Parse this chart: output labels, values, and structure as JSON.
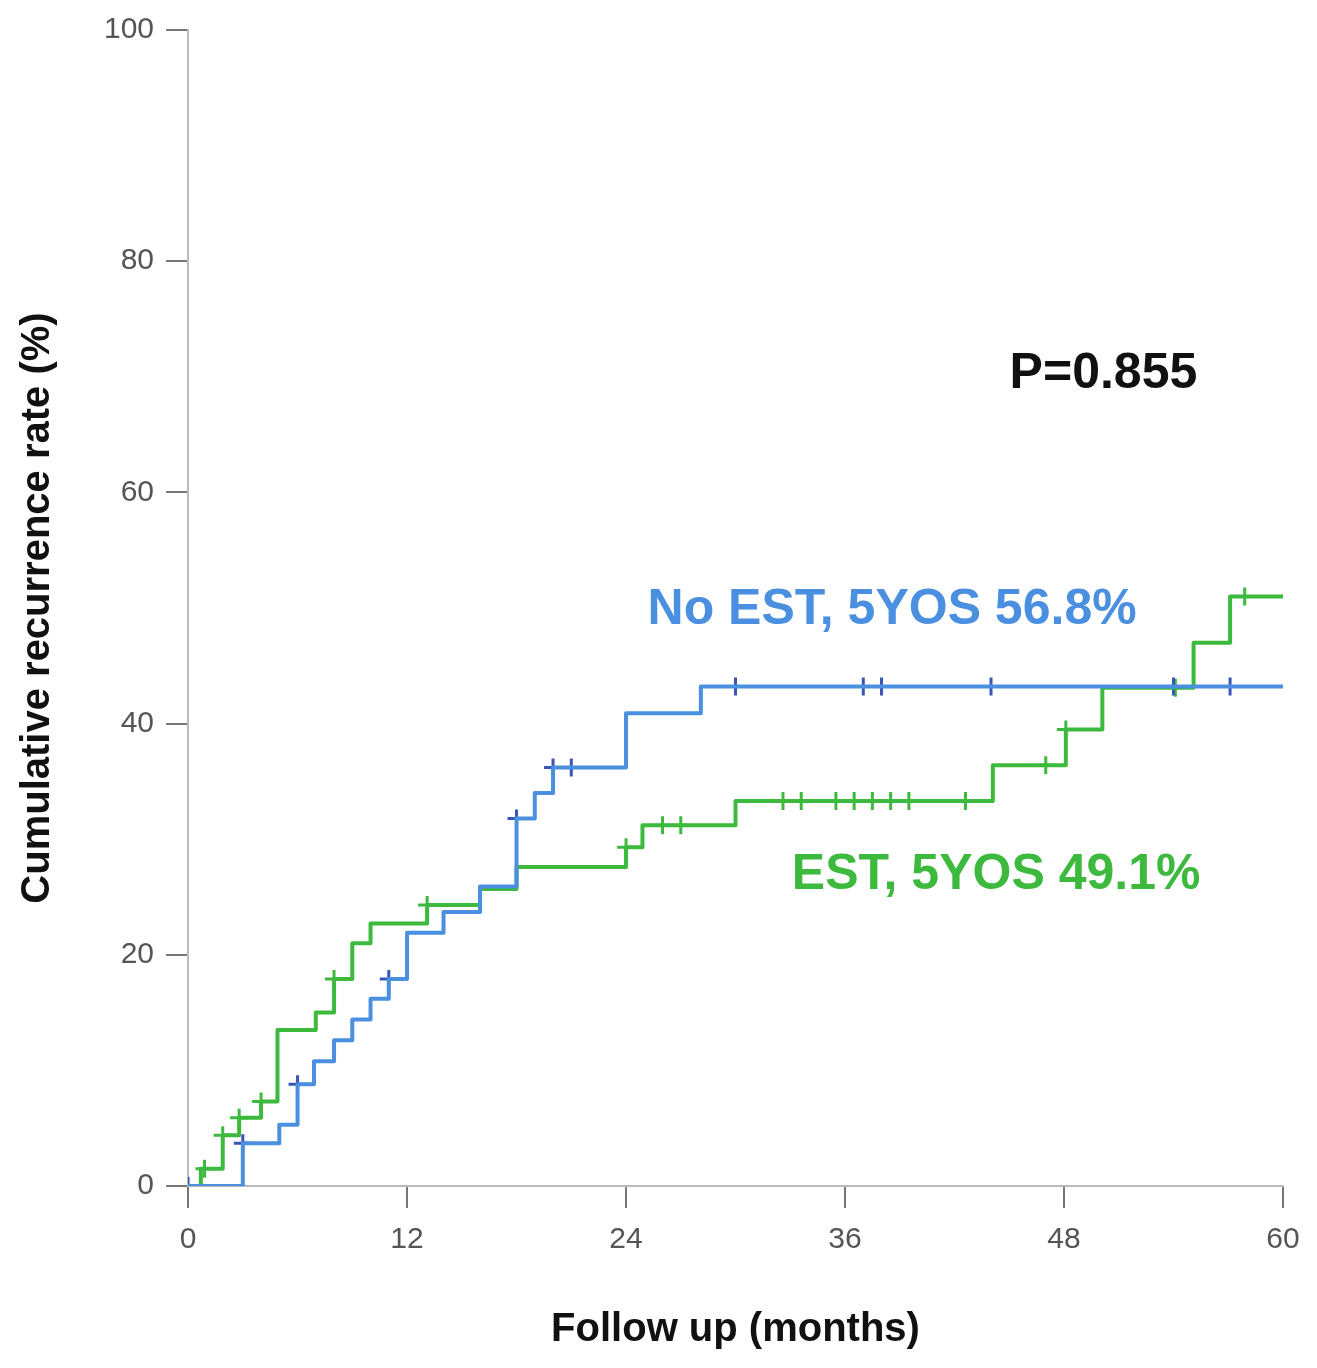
{
  "chart_data": {
    "type": "step",
    "xlabel": "Follow up (months)",
    "ylabel": "Cumulative recurrence rate (%)",
    "xlim": [
      0,
      60
    ],
    "xticks": [
      0,
      12,
      24,
      36,
      48,
      60
    ],
    "ylim": [
      0,
      100
    ],
    "yticks": [
      0,
      20,
      40,
      60,
      80,
      100
    ],
    "grid": false,
    "legend": false,
    "marker": "none",
    "line_style": "solid",
    "annotations": [
      "P=0.855"
    ],
    "series": [
      {
        "name": "No EST, 5YOS 56.8%",
        "color": "#4a8fe0",
        "x": [
          0,
          3,
          5,
          6,
          6.9,
          8,
          9,
          10,
          11,
          12,
          14,
          16,
          18,
          19,
          20,
          24,
          28.1,
          60
        ],
        "values": [
          0,
          3.7,
          5.3,
          8.8,
          10.8,
          12.6,
          14.4,
          16.2,
          17.9,
          21.9,
          23.7,
          25.9,
          31.8,
          34,
          36.2,
          40.9,
          43.2,
          43.2
        ]
      },
      {
        "name": "EST, 5YOS 49.1%",
        "color": "#3dba3d",
        "x": [
          0,
          0.7,
          1.9,
          2.8,
          4,
          4.9,
          7,
          8,
          9,
          10,
          13.1,
          16,
          18,
          24,
          24.9,
          30,
          44.1,
          48.1,
          50.1,
          55.1,
          57.1,
          60
        ],
        "values": [
          0,
          1.5,
          4.4,
          5.9,
          7.3,
          13.5,
          15,
          17.9,
          21,
          22.7,
          24.3,
          25.7,
          27.6,
          29.3,
          31.2,
          33.3,
          36.4,
          39.5,
          43.1,
          47,
          51,
          51
        ]
      },
      {
        "type": "scatter",
        "color": "#3a55b8",
        "marker": "cross",
        "x": [
          0,
          3,
          6,
          11,
          18,
          20,
          21,
          30,
          37,
          38,
          44,
          54,
          57.1
        ],
        "values": [
          0,
          3.7,
          8.8,
          17.9,
          31.8,
          36.2,
          36.2,
          43.2,
          43.2,
          43.2,
          43.2,
          43.2,
          43.2
        ]
      },
      {
        "type": "scatter",
        "color": "#3dba3d",
        "marker": "cross",
        "x": [
          0.9,
          1.9,
          2.8,
          4,
          8,
          13.1,
          24,
          26,
          27,
          32.6,
          33.6,
          35.5,
          36.5,
          37.5,
          38.5,
          39.5,
          42.6,
          47,
          48.1,
          54.1,
          57.9
        ],
        "values": [
          1.5,
          4.4,
          5.9,
          7.3,
          17.9,
          24.3,
          29.3,
          31.2,
          31.2,
          33.3,
          33.3,
          33.3,
          33.3,
          33.3,
          33.3,
          33.3,
          33.3,
          36.4,
          39.5,
          43.1,
          51
        ]
      }
    ]
  }
}
